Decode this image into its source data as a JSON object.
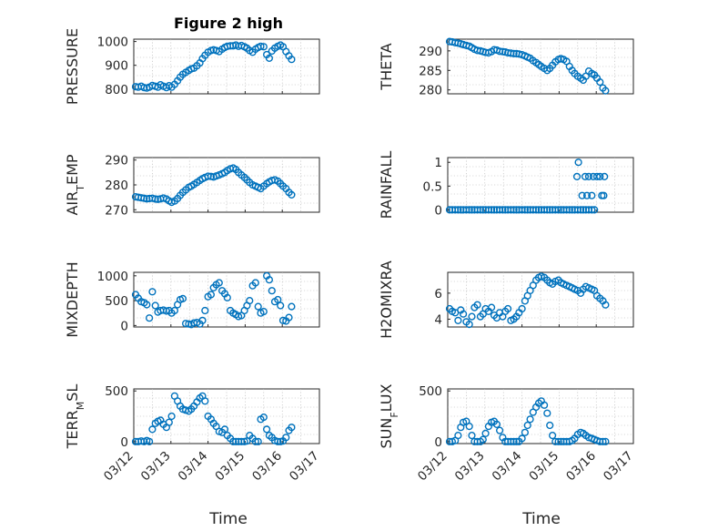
{
  "figure": {
    "title": "Figure 2 high",
    "xlabel": "Time",
    "marker_color": "#0072bd"
  },
  "chart_data": [
    {
      "id": "pressure",
      "type": "scatter",
      "ylabel": "PRESSURE",
      "ylim": [
        780,
        1010
      ],
      "yticks": [
        800,
        900,
        1000
      ],
      "yticklabels": [
        "800",
        "900",
        "1000"
      ],
      "xlim": [
        0,
        5
      ],
      "xticks": [
        0,
        1,
        2,
        3,
        4,
        5
      ],
      "xticklabels": [],
      "x": [
        0.05,
        0.12,
        0.2,
        0.28,
        0.35,
        0.42,
        0.5,
        0.58,
        0.65,
        0.72,
        0.8,
        0.88,
        0.95,
        1.02,
        1.1,
        1.18,
        1.25,
        1.32,
        1.4,
        1.48,
        1.55,
        1.62,
        1.7,
        1.78,
        1.85,
        1.92,
        2.0,
        2.08,
        2.15,
        2.22,
        2.3,
        2.38,
        2.45,
        2.52,
        2.6,
        2.68,
        2.75,
        2.82,
        2.9,
        2.98,
        3.05,
        3.12,
        3.2,
        3.28,
        3.35,
        3.42,
        3.5,
        3.58,
        3.65,
        3.72,
        3.8,
        3.88,
        3.95,
        4.02,
        4.1,
        4.18,
        4.25
      ],
      "y": [
        810,
        808,
        812,
        806,
        804,
        808,
        815,
        812,
        808,
        818,
        812,
        806,
        814,
        808,
        820,
        835,
        850,
        862,
        870,
        878,
        885,
        888,
        898,
        910,
        928,
        942,
        955,
        962,
        965,
        962,
        958,
        968,
        975,
        980,
        982,
        982,
        985,
        980,
        983,
        978,
        972,
        962,
        955,
        968,
        975,
        980,
        978,
        945,
        930,
        960,
        972,
        980,
        985,
        978,
        958,
        940,
        925
      ]
    },
    {
      "id": "theta",
      "type": "scatter",
      "ylabel": "THETA",
      "ylim": [
        279,
        293
      ],
      "yticks": [
        280,
        285,
        290
      ],
      "yticklabels": [
        "280",
        "285",
        "290"
      ],
      "xlim": [
        0,
        5
      ],
      "xticks": [
        0,
        1,
        2,
        3,
        4,
        5
      ],
      "xticklabels": [],
      "x": [
        0.05,
        0.12,
        0.2,
        0.28,
        0.35,
        0.42,
        0.5,
        0.58,
        0.65,
        0.72,
        0.8,
        0.88,
        0.95,
        1.02,
        1.1,
        1.18,
        1.25,
        1.32,
        1.4,
        1.48,
        1.55,
        1.62,
        1.7,
        1.78,
        1.85,
        1.92,
        2.0,
        2.08,
        2.15,
        2.22,
        2.3,
        2.38,
        2.45,
        2.52,
        2.6,
        2.68,
        2.75,
        2.82,
        2.9,
        2.98,
        3.05,
        3.12,
        3.2,
        3.28,
        3.35,
        3.42,
        3.5,
        3.58,
        3.65,
        3.72,
        3.8,
        3.88,
        3.95,
        4.02,
        4.1,
        4.18,
        4.25
      ],
      "y": [
        292.4,
        292.3,
        292.1,
        292.0,
        291.8,
        291.6,
        291.4,
        291.2,
        290.8,
        290.4,
        290.1,
        290.0,
        289.8,
        289.6,
        289.5,
        289.8,
        290.3,
        290.2,
        289.9,
        289.8,
        289.7,
        289.5,
        289.4,
        289.3,
        289.3,
        289.2,
        289.0,
        288.7,
        288.4,
        288.1,
        287.5,
        287.0,
        286.5,
        286.0,
        285.5,
        285.0,
        285.5,
        286.3,
        287.2,
        287.8,
        288.0,
        287.8,
        287.3,
        286.0,
        285.0,
        284.2,
        283.5,
        283.0,
        282.5,
        283.5,
        284.8,
        284.2,
        283.8,
        283.0,
        282.0,
        280.5,
        279.8
      ]
    },
    {
      "id": "air_temp",
      "type": "scatter",
      "ylabel": "AIR_TEMP",
      "ylim": [
        269,
        291
      ],
      "yticks": [
        270,
        280,
        290
      ],
      "yticklabels": [
        "270",
        "280",
        "290"
      ],
      "xlim": [
        0,
        5
      ],
      "xticks": [
        0,
        1,
        2,
        3,
        4,
        5
      ],
      "xticklabels": [],
      "x": [
        0.05,
        0.12,
        0.2,
        0.28,
        0.35,
        0.42,
        0.5,
        0.58,
        0.65,
        0.72,
        0.8,
        0.88,
        0.95,
        1.02,
        1.1,
        1.18,
        1.25,
        1.32,
        1.4,
        1.48,
        1.55,
        1.62,
        1.7,
        1.78,
        1.85,
        1.92,
        2.0,
        2.08,
        2.15,
        2.22,
        2.3,
        2.38,
        2.45,
        2.52,
        2.6,
        2.68,
        2.75,
        2.82,
        2.9,
        2.98,
        3.05,
        3.12,
        3.2,
        3.28,
        3.35,
        3.42,
        3.5,
        3.58,
        3.65,
        3.72,
        3.8,
        3.88,
        3.95,
        4.02,
        4.1,
        4.18,
        4.25
      ],
      "y": [
        275.2,
        275.0,
        274.8,
        274.6,
        274.4,
        274.5,
        274.6,
        274.3,
        274.2,
        274.4,
        274.7,
        274.3,
        273.6,
        273.0,
        273.5,
        274.5,
        275.8,
        277.0,
        278.0,
        279.0,
        279.5,
        280.2,
        281.0,
        281.8,
        282.5,
        283.0,
        283.5,
        283.4,
        283.2,
        283.6,
        284.0,
        284.5,
        285.0,
        285.8,
        286.5,
        286.8,
        286.2,
        285.0,
        284.0,
        283.0,
        282.0,
        281.0,
        280.0,
        279.5,
        279.0,
        278.5,
        279.5,
        280.5,
        281.2,
        281.8,
        282.0,
        281.5,
        280.5,
        279.5,
        278.5,
        277.0,
        276.0
      ]
    },
    {
      "id": "rainfall",
      "type": "scatter",
      "ylabel": "RAINFALL",
      "ylim": [
        -0.05,
        1.1
      ],
      "yticks": [
        0,
        0.5,
        1
      ],
      "yticklabels": [
        "0",
        "0.5",
        "1"
      ],
      "xlim": [
        0,
        5
      ],
      "xticks": [
        0,
        1,
        2,
        3,
        4,
        5
      ],
      "xticklabels": [],
      "x": [
        0.05,
        0.12,
        0.2,
        0.28,
        0.35,
        0.42,
        0.5,
        0.58,
        0.65,
        0.72,
        0.8,
        0.88,
        0.95,
        1.02,
        1.1,
        1.18,
        1.25,
        1.32,
        1.4,
        1.48,
        1.55,
        1.62,
        1.7,
        1.78,
        1.85,
        1.92,
        2.0,
        2.08,
        2.15,
        2.22,
        2.3,
        2.38,
        2.45,
        2.52,
        2.6,
        2.68,
        2.75,
        2.82,
        2.9,
        2.98,
        3.05,
        3.12,
        3.2,
        3.28,
        3.35,
        3.42,
        3.5,
        3.58,
        3.65,
        3.72,
        3.8,
        3.88,
        3.95,
        3.48,
        3.52,
        3.62,
        3.7,
        3.75,
        3.8,
        3.88,
        3.92,
        4.02,
        4.1,
        4.15,
        4.2,
        4.22
      ],
      "y": [
        0,
        0,
        0,
        0,
        0,
        0,
        0,
        0,
        0,
        0,
        0,
        0,
        0,
        0,
        0,
        0,
        0,
        0,
        0,
        0,
        0,
        0,
        0,
        0,
        0,
        0,
        0,
        0,
        0,
        0,
        0,
        0,
        0,
        0,
        0,
        0,
        0,
        0,
        0,
        0,
        0,
        0,
        0,
        0,
        0,
        0,
        0,
        0,
        0,
        0,
        0,
        0,
        0,
        0.7,
        1.0,
        0.3,
        0.7,
        0.3,
        0.7,
        0.3,
        0.7,
        0.7,
        0.7,
        0.3,
        0.3,
        0.7
      ]
    },
    {
      "id": "mixdepth",
      "type": "scatter",
      "ylabel": "MIXDEPTH",
      "ylim": [
        -30,
        1070
      ],
      "yticks": [
        0,
        500,
        1000
      ],
      "yticklabels": [
        "0",
        "500",
        "1000"
      ],
      "xlim": [
        0,
        5
      ],
      "xticks": [
        0,
        1,
        2,
        3,
        4,
        5
      ],
      "xticklabels": [],
      "x": [
        0.05,
        0.12,
        0.2,
        0.28,
        0.35,
        0.42,
        0.5,
        0.58,
        0.65,
        0.72,
        0.8,
        0.88,
        0.95,
        1.02,
        1.1,
        1.18,
        1.25,
        1.32,
        1.4,
        1.48,
        1.55,
        1.62,
        1.7,
        1.78,
        1.85,
        1.92,
        2.0,
        2.08,
        2.15,
        2.22,
        2.3,
        2.38,
        2.45,
        2.52,
        2.6,
        2.68,
        2.75,
        2.82,
        2.9,
        2.98,
        3.05,
        3.12,
        3.2,
        3.28,
        3.35,
        3.42,
        3.5,
        3.58,
        3.65,
        3.72,
        3.8,
        3.88,
        3.95,
        4.02,
        4.1,
        4.18,
        4.25
      ],
      "y": [
        620,
        550,
        480,
        460,
        420,
        150,
        680,
        400,
        270,
        300,
        310,
        290,
        300,
        250,
        300,
        420,
        520,
        540,
        40,
        30,
        20,
        50,
        60,
        30,
        100,
        300,
        580,
        620,
        760,
        820,
        860,
        700,
        640,
        560,
        300,
        250,
        220,
        180,
        200,
        300,
        400,
        500,
        800,
        860,
        380,
        250,
        280,
        1000,
        920,
        700,
        480,
        520,
        400,
        100,
        90,
        160,
        380
      ]
    },
    {
      "id": "h2omixra",
      "type": "scatter",
      "ylabel": "H2OMIXRA",
      "ylim": [
        3.4,
        7.6
      ],
      "yticks": [
        4,
        6
      ],
      "yticklabels": [
        "4",
        "6"
      ],
      "xlim": [
        0,
        5
      ],
      "xticks": [
        0,
        1,
        2,
        3,
        4,
        5
      ],
      "xticklabels": [],
      "x": [
        0.05,
        0.12,
        0.2,
        0.28,
        0.35,
        0.42,
        0.5,
        0.58,
        0.65,
        0.72,
        0.8,
        0.88,
        0.95,
        1.02,
        1.1,
        1.18,
        1.25,
        1.32,
        1.4,
        1.48,
        1.55,
        1.62,
        1.7,
        1.78,
        1.85,
        1.92,
        2.0,
        2.08,
        2.15,
        2.22,
        2.3,
        2.38,
        2.45,
        2.52,
        2.6,
        2.68,
        2.75,
        2.82,
        2.9,
        2.98,
        3.05,
        3.12,
        3.2,
        3.28,
        3.35,
        3.42,
        3.5,
        3.58,
        3.65,
        3.72,
        3.8,
        3.88,
        3.95,
        4.02,
        4.1,
        4.18,
        4.25
      ],
      "y": [
        4.8,
        4.6,
        4.5,
        3.9,
        4.7,
        4.4,
        3.8,
        3.6,
        4.2,
        4.9,
        5.1,
        4.2,
        4.4,
        4.8,
        4.6,
        4.9,
        4.3,
        4.1,
        4.5,
        4.2,
        4.6,
        4.8,
        3.9,
        4.0,
        4.2,
        4.5,
        4.8,
        5.4,
        5.8,
        6.2,
        6.6,
        7.0,
        7.2,
        7.3,
        7.2,
        7.0,
        6.8,
        6.7,
        6.9,
        7.0,
        6.8,
        6.7,
        6.6,
        6.5,
        6.4,
        6.3,
        6.2,
        6.0,
        6.3,
        6.5,
        6.4,
        6.3,
        6.2,
        5.8,
        5.6,
        5.4,
        5.1
      ]
    },
    {
      "id": "terr_msl",
      "type": "scatter",
      "ylabel": "TERR_MSL",
      "ylim": [
        -20,
        520
      ],
      "yticks": [
        0,
        500
      ],
      "yticklabels": [
        "0",
        "500"
      ],
      "xlim": [
        0,
        5
      ],
      "xticks": [
        0,
        1,
        2,
        3,
        4,
        5
      ],
      "xticklabels": [
        "03/12",
        "03/13",
        "03/14",
        "03/15",
        "03/16",
        "03/17"
      ],
      "x": [
        0.05,
        0.12,
        0.2,
        0.28,
        0.35,
        0.42,
        0.5,
        0.58,
        0.65,
        0.72,
        0.8,
        0.88,
        0.95,
        1.02,
        1.1,
        1.18,
        1.25,
        1.32,
        1.4,
        1.48,
        1.55,
        1.62,
        1.7,
        1.78,
        1.85,
        1.92,
        2.0,
        2.08,
        2.15,
        2.22,
        2.3,
        2.38,
        2.45,
        2.52,
        2.6,
        2.68,
        2.75,
        2.82,
        2.9,
        2.98,
        3.05,
        3.12,
        3.2,
        3.28,
        3.35,
        3.42,
        3.5,
        3.58,
        3.65,
        3.72,
        3.8,
        3.88,
        3.95,
        4.02,
        4.1,
        4.18,
        4.25
      ],
      "y": [
        0,
        0,
        5,
        0,
        10,
        0,
        120,
        180,
        200,
        210,
        170,
        140,
        190,
        250,
        450,
        400,
        350,
        320,
        310,
        300,
        320,
        350,
        390,
        430,
        450,
        400,
        250,
        220,
        180,
        150,
        100,
        90,
        120,
        60,
        30,
        0,
        0,
        0,
        0,
        0,
        5,
        60,
        30,
        0,
        0,
        220,
        240,
        120,
        60,
        40,
        10,
        0,
        0,
        5,
        40,
        110,
        140
      ]
    },
    {
      "id": "sun_flux",
      "type": "scatter",
      "ylabel": "SUN_FLUX",
      "ylim": [
        -20,
        520
      ],
      "yticks": [
        0,
        500
      ],
      "yticklabels": [
        "0",
        "500"
      ],
      "xlim": [
        0,
        5
      ],
      "xticks": [
        0,
        1,
        2,
        3,
        4,
        5
      ],
      "xticklabels": [
        "03/12",
        "03/13",
        "03/14",
        "03/15",
        "03/16",
        "03/17"
      ],
      "x": [
        0.05,
        0.12,
        0.2,
        0.28,
        0.35,
        0.42,
        0.5,
        0.58,
        0.65,
        0.72,
        0.8,
        0.88,
        0.95,
        1.02,
        1.1,
        1.18,
        1.25,
        1.32,
        1.4,
        1.48,
        1.55,
        1.62,
        1.7,
        1.78,
        1.85,
        1.92,
        2.0,
        2.08,
        2.15,
        2.22,
        2.3,
        2.38,
        2.45,
        2.52,
        2.6,
        2.68,
        2.75,
        2.82,
        2.9,
        2.98,
        3.05,
        3.12,
        3.2,
        3.28,
        3.35,
        3.42,
        3.5,
        3.58,
        3.65,
        3.72,
        3.8,
        3.88,
        3.95,
        4.02,
        4.1,
        4.18,
        4.25
      ],
      "y": [
        0,
        0,
        10,
        60,
        140,
        190,
        200,
        150,
        60,
        0,
        0,
        0,
        20,
        80,
        150,
        190,
        200,
        170,
        110,
        40,
        0,
        0,
        0,
        0,
        0,
        0,
        30,
        90,
        160,
        220,
        290,
        340,
        380,
        400,
        360,
        280,
        160,
        60,
        0,
        0,
        0,
        0,
        0,
        0,
        10,
        30,
        70,
        90,
        80,
        60,
        40,
        30,
        20,
        10,
        0,
        0,
        0
      ]
    }
  ]
}
